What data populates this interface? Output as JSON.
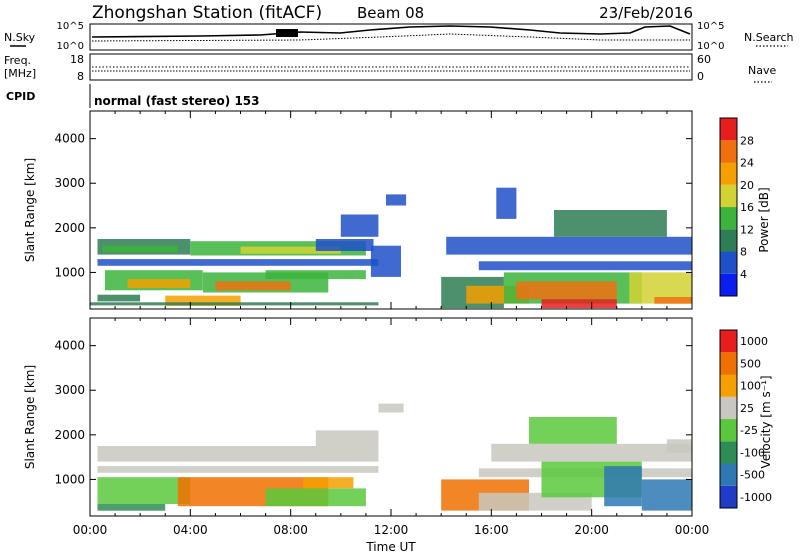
{
  "header": {
    "station": "Zhongshan Station (fitACF)",
    "beam": "Beam 08",
    "date": "23/Feb/2016"
  },
  "summary": {
    "nsky_label": "N.Sky",
    "nsearch_label": "N.Search",
    "freq_label_line1": "Freq.",
    "freq_label_line2": "[MHz]",
    "nave_label": "Nave",
    "cpid_label": "CPID",
    "cpid_value": "normal (fast stereo) 153",
    "noise_ticks": [
      "10^5",
      "10^0"
    ],
    "freq_ticks": [
      "18",
      "8"
    ],
    "nave_ticks": [
      "60",
      "0"
    ]
  },
  "x_ticks": [
    "00:00",
    "04:00",
    "08:00",
    "12:00",
    "16:00",
    "20:00",
    "00:00"
  ],
  "x_axis_label": "Time UT",
  "chart_data": [
    {
      "type": "heatmap",
      "name": "power",
      "ylabel": "Slant Range [km]",
      "ylim": [
        180,
        4620
      ],
      "yticks": [
        1000,
        2000,
        3000,
        4000
      ],
      "x_hours": [
        0,
        24
      ],
      "colorbar_label": "Power [dB]",
      "colorbar_ticks": [
        "4",
        "8",
        "12",
        "16",
        "20",
        "24",
        "28"
      ],
      "colorbar_colors": [
        "#0a1ef0",
        "#1e50c8",
        "#2e7d55",
        "#3cb43c",
        "#d2d232",
        "#f5a000",
        "#f07010",
        "#e61e1e"
      ],
      "cells": [
        {
          "t0": 0.3,
          "t1": 4.0,
          "r0": 1400,
          "r1": 1750,
          "v": 10
        },
        {
          "t0": 0.5,
          "t1": 3.5,
          "r0": 1450,
          "r1": 1600,
          "v": 14
        },
        {
          "t0": 4.0,
          "t1": 11.0,
          "r0": 1380,
          "r1": 1700,
          "v": 12
        },
        {
          "t0": 6.0,
          "t1": 10.0,
          "r0": 1420,
          "r1": 1580,
          "v": 19
        },
        {
          "t0": 9.0,
          "t1": 11.3,
          "r0": 1480,
          "r1": 1750,
          "v": 7
        },
        {
          "t0": 0.3,
          "t1": 11.5,
          "r0": 1150,
          "r1": 1300,
          "v": 6
        },
        {
          "t0": 0.6,
          "t1": 4.5,
          "r0": 600,
          "r1": 1050,
          "v": 14
        },
        {
          "t0": 1.5,
          "t1": 4.0,
          "r0": 650,
          "r1": 850,
          "v": 22
        },
        {
          "t0": 4.5,
          "t1": 9.5,
          "r0": 550,
          "r1": 1000,
          "v": 15
        },
        {
          "t0": 5.0,
          "t1": 8.0,
          "r0": 600,
          "r1": 800,
          "v": 24
        },
        {
          "t0": 0.3,
          "t1": 2.0,
          "r0": 350,
          "r1": 500,
          "v": 11
        },
        {
          "t0": 3.0,
          "t1": 6.0,
          "r0": 250,
          "r1": 480,
          "v": 21
        },
        {
          "t0": 0.0,
          "t1": 11.5,
          "r0": 260,
          "r1": 330,
          "v": 8
        },
        {
          "t0": 7.0,
          "t1": 11.0,
          "r0": 850,
          "r1": 1050,
          "v": 13
        },
        {
          "t0": 10.0,
          "t1": 11.5,
          "r0": 1800,
          "r1": 2300,
          "v": 5
        },
        {
          "t0": 11.2,
          "t1": 12.4,
          "r0": 900,
          "r1": 1600,
          "v": 6
        },
        {
          "t0": 11.8,
          "t1": 12.6,
          "r0": 2500,
          "r1": 2750,
          "v": 5
        },
        {
          "t0": 14.0,
          "t1": 16.5,
          "r0": 200,
          "r1": 900,
          "v": 8
        },
        {
          "t0": 15.0,
          "t1": 17.5,
          "r0": 300,
          "r1": 700,
          "v": 22
        },
        {
          "t0": 15.5,
          "t1": 24.0,
          "r0": 1050,
          "r1": 1250,
          "v": 6
        },
        {
          "t0": 16.5,
          "t1": 22.0,
          "r0": 300,
          "r1": 1000,
          "v": 12
        },
        {
          "t0": 17.0,
          "t1": 21.0,
          "r0": 400,
          "r1": 800,
          "v": 24
        },
        {
          "t0": 18.0,
          "t1": 21.0,
          "r0": 200,
          "r1": 400,
          "v": 28
        },
        {
          "t0": 14.2,
          "t1": 24.0,
          "r0": 1400,
          "r1": 1800,
          "v": 6
        },
        {
          "t0": 18.5,
          "t1": 23.0,
          "r0": 1800,
          "r1": 2400,
          "v": 8
        },
        {
          "t0": 21.5,
          "t1": 24.0,
          "r0": 300,
          "r1": 1000,
          "v": 16
        },
        {
          "t0": 22.5,
          "t1": 24.0,
          "r0": 300,
          "r1": 450,
          "v": 26
        },
        {
          "t0": 16.2,
          "t1": 17.0,
          "r0": 2200,
          "r1": 2900,
          "v": 5
        }
      ]
    },
    {
      "type": "heatmap",
      "name": "velocity",
      "ylabel": "Slant Range [km]",
      "ylim": [
        180,
        4620
      ],
      "yticks": [
        1000,
        2000,
        3000,
        4000
      ],
      "x_hours": [
        0,
        24
      ],
      "colorbar_label": "Velocity [m s⁻¹]",
      "colorbar_ticks": [
        "1000",
        "500",
        "100",
        "25",
        "-25",
        "-100",
        "-500",
        "-1000"
      ],
      "colorbar_colors": [
        "#1e3cc8",
        "#2e78b4",
        "#2e8c55",
        "#5ac83c",
        "#c8c8c0",
        "#f5a000",
        "#f07000",
        "#e61e1e"
      ],
      "cells": [
        {
          "t0": 0.3,
          "t1": 11.5,
          "r0": 1400,
          "r1": 1750,
          "v": 0
        },
        {
          "t0": 0.3,
          "t1": 11.5,
          "r0": 1150,
          "r1": 1300,
          "v": 0
        },
        {
          "t0": 9.0,
          "t1": 11.5,
          "r0": 1750,
          "r1": 2100,
          "v": 0
        },
        {
          "t0": 0.3,
          "t1": 4.0,
          "r0": 450,
          "r1": 1050,
          "v": 60
        },
        {
          "t0": 0.3,
          "t1": 3.0,
          "r0": 300,
          "r1": 450,
          "v": 300
        },
        {
          "t0": 3.5,
          "t1": 9.5,
          "r0": 400,
          "r1": 1050,
          "v": -200
        },
        {
          "t0": 7.0,
          "t1": 11.0,
          "r0": 400,
          "r1": 800,
          "v": 60
        },
        {
          "t0": 8.5,
          "t1": 10.5,
          "r0": 800,
          "r1": 1050,
          "v": -60
        },
        {
          "t0": 11.5,
          "t1": 12.5,
          "r0": 2500,
          "r1": 2700,
          "v": 0
        },
        {
          "t0": 14.0,
          "t1": 17.5,
          "r0": 300,
          "r1": 1000,
          "v": -200
        },
        {
          "t0": 15.5,
          "t1": 20.0,
          "r0": 300,
          "r1": 700,
          "v": 0
        },
        {
          "t0": 15.5,
          "t1": 24.0,
          "r0": 1050,
          "r1": 1250,
          "v": 0
        },
        {
          "t0": 16.0,
          "t1": 24.0,
          "r0": 1400,
          "r1": 1800,
          "v": 0
        },
        {
          "t0": 18.0,
          "t1": 22.0,
          "r0": 600,
          "r1": 1400,
          "v": 60
        },
        {
          "t0": 20.5,
          "t1": 22.0,
          "r0": 400,
          "r1": 1300,
          "v": 700
        },
        {
          "t0": 22.0,
          "t1": 24.0,
          "r0": 300,
          "r1": 1000,
          "v": 700
        },
        {
          "t0": 17.5,
          "t1": 21.0,
          "r0": 1800,
          "r1": 2400,
          "v": 60
        },
        {
          "t0": 23.0,
          "t1": 24.0,
          "r0": 1600,
          "r1": 1900,
          "v": 0
        }
      ]
    }
  ]
}
